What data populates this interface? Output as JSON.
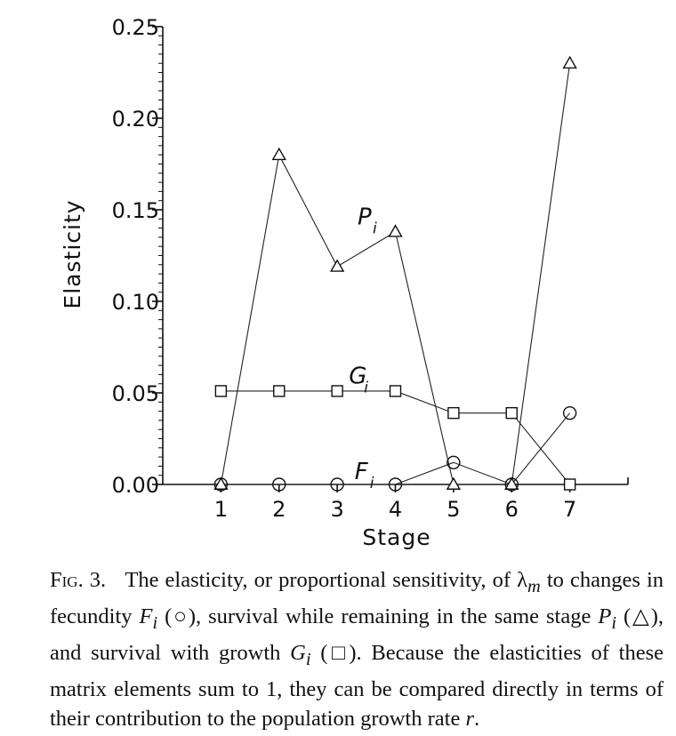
{
  "chart_data": {
    "type": "line",
    "xlabel": "Stage",
    "ylabel": "Elasticity",
    "xlim": [
      0,
      8
    ],
    "ylim": [
      0,
      0.25
    ],
    "x": [
      1,
      2,
      3,
      4,
      5,
      6,
      7
    ],
    "x_ticks": [
      "1",
      "2",
      "3",
      "4",
      "5",
      "6",
      "7"
    ],
    "y_ticks": [
      "0.00",
      "0.05",
      "0.10",
      "0.15",
      "0.20",
      "0.25"
    ],
    "series": [
      {
        "name": "P",
        "subscript": "i",
        "marker": "triangle",
        "values": [
          0.0,
          0.18,
          0.119,
          0.138,
          0.0,
          0.0,
          0.23
        ]
      },
      {
        "name": "G",
        "subscript": "i",
        "marker": "square",
        "values": [
          0.051,
          0.051,
          0.051,
          0.051,
          0.039,
          0.039,
          0.0
        ]
      },
      {
        "name": "F",
        "subscript": "i",
        "marker": "circle",
        "values": [
          0.0,
          0.0,
          0.0,
          0.0,
          0.012,
          0.0,
          0.039
        ]
      }
    ],
    "grid": false,
    "legend": "inline labels"
  },
  "caption": {
    "fig_label": "Fig. 3.",
    "t1": "The elasticity, or proportional sensitivity, of λ",
    "sub_m": "m",
    "t2": " to changes in fecundity ",
    "F": "F",
    "sub_i1": "i",
    "t3": " (○), survival while remaining in the same stage ",
    "P": "P",
    "sub_i2": "i",
    "t4": " (△), and survival with growth ",
    "G": "G",
    "sub_i3": "i",
    "t5": " (□). Because the elasticities of these matrix elements sum to 1, they can be compared directly in terms of their contribution to the population growth rate ",
    "r": "r",
    "t6": "."
  }
}
